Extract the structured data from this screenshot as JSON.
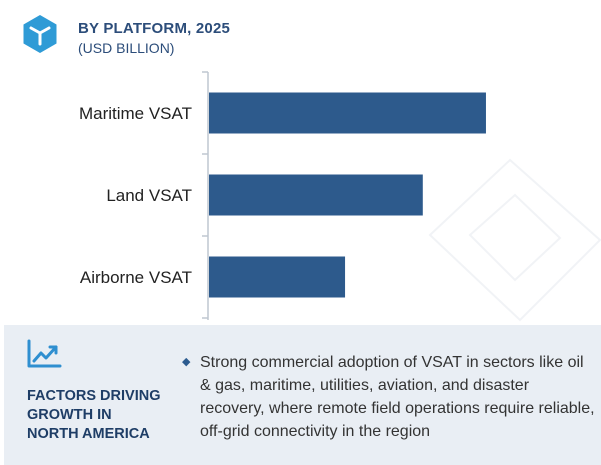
{
  "header": {
    "title": "BY PLATFORM, 2025",
    "subtitle": "(USD BILLION)"
  },
  "colors": {
    "bar": "#2d5a8c",
    "axis": "#bfc7d0",
    "heading": "#2c4d7a",
    "footer_bg": "#e9eef4"
  },
  "icons": {
    "logo": "hexagon-cube-icon",
    "footer": "line-chart-icon",
    "bullet": "diamond-bullet-icon"
  },
  "chart_data": {
    "type": "bar",
    "orientation": "horizontal",
    "title": "BY PLATFORM, 2025",
    "subtitle": "(USD BILLION)",
    "categories": [
      "Maritime VSAT",
      "Land VSAT",
      "Airborne VSAT"
    ],
    "values": [
      2.85,
      2.2,
      1.4
    ],
    "xlim": [
      0,
      3.9
    ],
    "grid": false,
    "legend": "none"
  },
  "footer": {
    "heading_lines": [
      "FACTORS DRIVING",
      "GROWTH IN",
      "NORTH AMERICA"
    ],
    "bullet_text": "Strong commercial adoption of VSAT in sectors like oil & gas, maritime, utilities, aviation, and disaster recovery, where remote field operations require reliable, off-grid connectivity in the region"
  }
}
